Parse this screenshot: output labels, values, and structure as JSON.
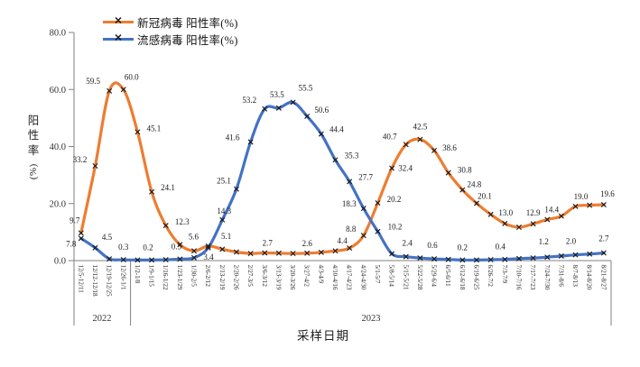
{
  "chart_data": {
    "type": "line",
    "title": "",
    "x_axis_title": "采样日期",
    "y_axis_title_chars": [
      "阳",
      "性",
      "率"
    ],
    "y_axis_title_suffix": "(%)",
    "ylabel": "阳性率(%)",
    "xlabel": "采样日期",
    "ylim": [
      0,
      80
    ],
    "y_ticks": [
      "80.0",
      "60.0",
      "40.0",
      "20.0",
      "0.0"
    ],
    "grid": false,
    "legend_position": "top",
    "marker": "x",
    "marker_color": "#1a1a1a",
    "axis_color": "#808080",
    "label_color": "#1a1a1a",
    "year_groups": [
      {
        "label": "2022",
        "from": 0,
        "to": 3
      },
      {
        "label": "2023",
        "from": 4,
        "to": 37
      }
    ],
    "categories": [
      "12/5-12/11",
      "12/12-12/18",
      "12/19-12/25",
      "12/26-1/1",
      "1/2-1/8",
      "1/9-1/15",
      "1/16-1/22",
      "1/23-1/29",
      "1/30-2/5",
      "2/6-2/12",
      "2/13-2/19",
      "2/20-2/26",
      "2/27-3/5",
      "3/6-3/12",
      "3/13-3/19",
      "3/20-3/26",
      "3/27-4/2",
      "4/3-4/9",
      "4/10-4/16",
      "4/17-4/23",
      "4/24-4/30",
      "5/1-5/7",
      "5/8-5/14",
      "5/15-5/21",
      "5/22-5/28",
      "5/29-6/4",
      "6/5-6/11",
      "6/12-6/18",
      "6/19-6/25",
      "6/26-7/2",
      "7/3-7/9",
      "7/10-7/16",
      "7/17-7/23",
      "7/24-7/30",
      "7/31-8/6",
      "8/7-8/13",
      "8/14-8/20",
      "8/21-8/27"
    ],
    "series": [
      {
        "name": "新冠病毒 阳性率(%)",
        "color": "#ED7D31",
        "values": [
          9.7,
          33.2,
          59.5,
          60.0,
          45.1,
          24.1,
          12.3,
          5.6,
          3.4,
          5.1,
          4.0,
          3.0,
          2.5,
          2.7,
          2.6,
          2.5,
          2.6,
          2.9,
          3.4,
          4.4,
          8.8,
          20.2,
          32.4,
          40.7,
          42.5,
          38.6,
          30.8,
          24.8,
          20.1,
          16.2,
          13.0,
          11.7,
          12.9,
          14.4,
          15.6,
          19.0,
          19.4,
          19.6
        ],
        "labels": [
          {
            "i": 0,
            "text": "9.7",
            "dx": -7,
            "dy": -11
          },
          {
            "i": 1,
            "text": "33.2",
            "dx": -17,
            "dy": -4
          },
          {
            "i": 2,
            "text": "59.5",
            "dx": -18,
            "dy": -8
          },
          {
            "i": 3,
            "text": "60.0",
            "dx": 9,
            "dy": -11
          },
          {
            "i": 4,
            "text": "45.1",
            "dx": 18,
            "dy": -1
          },
          {
            "i": 5,
            "text": "24.1",
            "dx": 18,
            "dy": -2
          },
          {
            "i": 6,
            "text": "12.3",
            "dx": 18,
            "dy": -1
          },
          {
            "i": 7,
            "text": "5.6",
            "dx": 15,
            "dy": -6
          },
          {
            "i": 8,
            "text": "3.4",
            "dx": 16,
            "dy": 10
          },
          {
            "i": 9,
            "text": "5.1",
            "dx": 20,
            "dy": -8
          },
          {
            "i": 13,
            "text": "2.7",
            "dx": 3,
            "dy": -8
          },
          {
            "i": 16,
            "text": "2.6",
            "dx": 0,
            "dy": -8
          },
          {
            "i": 19,
            "text": "4.4",
            "dx": -8,
            "dy": -5
          },
          {
            "i": 20,
            "text": "8.8",
            "dx": -14,
            "dy": -4
          },
          {
            "i": 21,
            "text": "20.2",
            "dx": 18,
            "dy": -1
          },
          {
            "i": 22,
            "text": "32.4",
            "dx": 15,
            "dy": 3
          },
          {
            "i": 23,
            "text": "40.7",
            "dx": -18,
            "dy": -6
          },
          {
            "i": 24,
            "text": "42.5",
            "dx": 0,
            "dy": -11
          },
          {
            "i": 25,
            "text": "38.6",
            "dx": 17,
            "dy": 0
          },
          {
            "i": 26,
            "text": "30.8",
            "dx": 18,
            "dy": 0
          },
          {
            "i": 27,
            "text": "24.8",
            "dx": 13,
            "dy": -3
          },
          {
            "i": 28,
            "text": "20.1",
            "dx": 9,
            "dy": -5
          },
          {
            "i": 30,
            "text": "13.0",
            "dx": 1,
            "dy": -9
          },
          {
            "i": 32,
            "text": "12.9",
            "dx": 0,
            "dy": -9
          },
          {
            "i": 33,
            "text": "14.4",
            "dx": 5,
            "dy": -8
          },
          {
            "i": 35,
            "text": "19.0",
            "dx": 6,
            "dy": -8
          },
          {
            "i": 37,
            "text": "19.6",
            "dx": 4,
            "dy": -9
          }
        ]
      },
      {
        "name": "流感病毒 阳性率(%)",
        "color": "#4472C4",
        "values": [
          7.8,
          4.5,
          0.6,
          0.3,
          0.2,
          0.2,
          0.3,
          0.5,
          1.0,
          4.5,
          14.3,
          25.1,
          41.6,
          53.2,
          53.5,
          55.5,
          50.6,
          44.4,
          35.3,
          27.7,
          18.3,
          10.2,
          2.4,
          1.4,
          0.9,
          0.6,
          0.4,
          0.2,
          0.2,
          0.3,
          0.4,
          0.7,
          0.9,
          1.2,
          1.6,
          2.0,
          2.3,
          2.7
        ],
        "labels": [
          {
            "i": 0,
            "text": "7.8",
            "dx": -11,
            "dy": 9
          },
          {
            "i": 1,
            "text": "4.5",
            "dx": 13,
            "dy": -9
          },
          {
            "i": 3,
            "text": "0.3",
            "dx": 0,
            "dy": -11
          },
          {
            "i": 5,
            "text": "0.2",
            "dx": -4,
            "dy": -11
          },
          {
            "i": 7,
            "text": "0.5",
            "dx": -4,
            "dy": -11
          },
          {
            "i": 10,
            "text": "14.3",
            "dx": 2,
            "dy": -7
          },
          {
            "i": 11,
            "text": "25.1",
            "dx": -14,
            "dy": -6
          },
          {
            "i": 12,
            "text": "41.6",
            "dx": -20,
            "dy": -2
          },
          {
            "i": 13,
            "text": "53.2",
            "dx": -17,
            "dy": -7
          },
          {
            "i": 14,
            "text": "53.5",
            "dx": -2,
            "dy": -12
          },
          {
            "i": 15,
            "text": "55.5",
            "dx": 14,
            "dy": -13
          },
          {
            "i": 16,
            "text": "50.6",
            "dx": 16,
            "dy": -4
          },
          {
            "i": 17,
            "text": "44.4",
            "dx": 17,
            "dy": -2
          },
          {
            "i": 18,
            "text": "35.3",
            "dx": 18,
            "dy": -2
          },
          {
            "i": 19,
            "text": "27.7",
            "dx": 18,
            "dy": -2
          },
          {
            "i": 20,
            "text": "18.3",
            "dx": -16,
            "dy": -2
          },
          {
            "i": 21,
            "text": "10.2",
            "dx": 19,
            "dy": -2
          },
          {
            "i": 22,
            "text": "2.4",
            "dx": 17,
            "dy": -9
          },
          {
            "i": 25,
            "text": "0.6",
            "dx": -2,
            "dy": -12
          },
          {
            "i": 27,
            "text": "0.2",
            "dx": 0,
            "dy": -11
          },
          {
            "i": 30,
            "text": "0.4",
            "dx": -5,
            "dy": -11
          },
          {
            "i": 33,
            "text": "1.2",
            "dx": -4,
            "dy": -14
          },
          {
            "i": 35,
            "text": "2.0",
            "dx": -5,
            "dy": -12
          },
          {
            "i": 37,
            "text": "2.7",
            "dx": 0,
            "dy": -13
          }
        ]
      }
    ]
  }
}
